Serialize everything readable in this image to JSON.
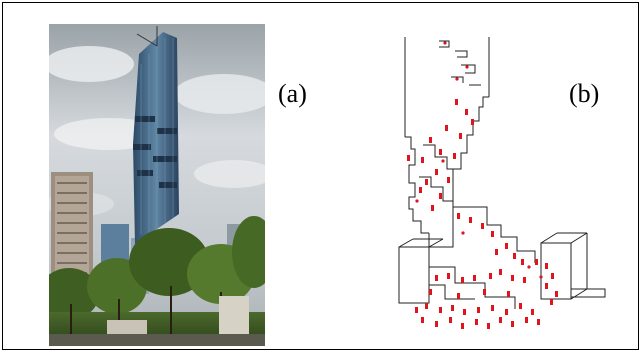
{
  "figure": {
    "panel_a": {
      "label": "(a)"
    },
    "panel_b": {
      "label": "(b)"
    }
  }
}
